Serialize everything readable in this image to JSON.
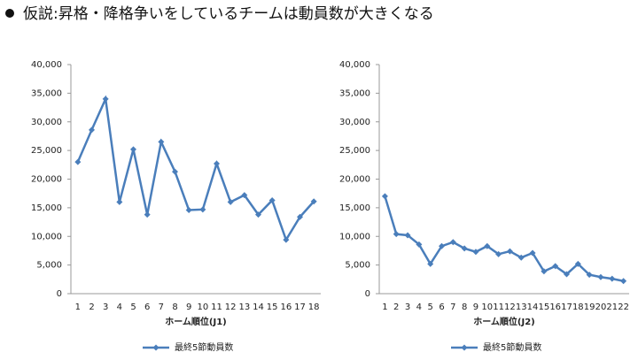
{
  "title": "仮説:昇格・降格争いをしているチームは動員数が大きくなる",
  "chart_data": [
    {
      "type": "line",
      "x_label": "ホーム順位(J1)",
      "categories": [
        "1",
        "2",
        "3",
        "4",
        "5",
        "6",
        "7",
        "8",
        "9",
        "10",
        "11",
        "12",
        "13",
        "14",
        "15",
        "16",
        "17",
        "18"
      ],
      "series": [
        {
          "name": "最終5節動員数",
          "color": "#4a7ebb",
          "values": [
            23000,
            28600,
            34000,
            16000,
            25200,
            13800,
            26500,
            21300,
            14600,
            14700,
            22700,
            16000,
            17200,
            13800,
            16300,
            9400,
            13400,
            16100
          ]
        }
      ],
      "ylim": [
        0,
        40000
      ],
      "yticks": [
        0,
        {
          "value": 5000,
          "label": "5,000"
        },
        {
          "value": 10000,
          "label": "10,000"
        },
        {
          "value": 15000,
          "label": "15,000"
        },
        {
          "value": 20000,
          "label": "20,000"
        },
        {
          "value": 25000,
          "label": "25,000"
        },
        {
          "value": 30000,
          "label": "30,000"
        },
        {
          "value": 35000,
          "label": "35,000"
        },
        {
          "value": 40000,
          "label": "40,000"
        }
      ],
      "grid": false,
      "legend": "bottom"
    },
    {
      "type": "line",
      "x_label": "ホーム順位(J2)",
      "categories": [
        "1",
        "2",
        "3",
        "4",
        "5",
        "6",
        "7",
        "8",
        "9",
        "10",
        "11",
        "12",
        "13",
        "14",
        "15",
        "16",
        "17",
        "18",
        "19",
        "20",
        "21",
        "22"
      ],
      "series": [
        {
          "name": "最終5節動員数",
          "color": "#4a7ebb",
          "values": [
            17000,
            10400,
            10200,
            8600,
            5200,
            8300,
            9000,
            7900,
            7300,
            8300,
            6900,
            7400,
            6300,
            7100,
            3900,
            4800,
            3400,
            5200,
            3300,
            2900,
            2600,
            2200
          ]
        }
      ],
      "ylim": [
        0,
        40000
      ],
      "yticks": [
        0,
        {
          "value": 5000,
          "label": "5,000"
        },
        {
          "value": 10000,
          "label": "10,000"
        },
        {
          "value": 15000,
          "label": "15,000"
        },
        {
          "value": 20000,
          "label": "20,000"
        },
        {
          "value": 25000,
          "label": "25,000"
        },
        {
          "value": 30000,
          "label": "30,000"
        },
        {
          "value": 35000,
          "label": "35,000"
        },
        {
          "value": 40000,
          "label": "40,000"
        }
      ],
      "grid": false,
      "legend": "bottom"
    }
  ]
}
